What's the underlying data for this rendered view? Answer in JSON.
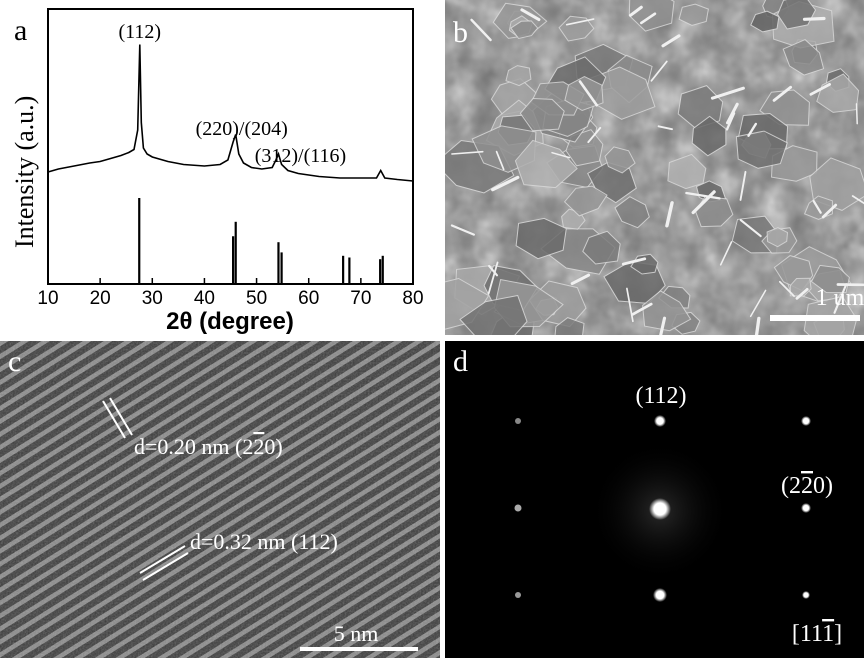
{
  "panels": {
    "a": {
      "label": "a"
    },
    "b": {
      "label": "b",
      "scale_bar": "1 um"
    },
    "c": {
      "label": "c",
      "scale_bar": "5 nm",
      "annotations": [
        {
          "text": "d=0.20 nm (2",
          "overbar_digit": "2",
          "suffix": "0)"
        },
        {
          "text": "d=0.32 nm (112)"
        }
      ]
    },
    "d": {
      "label": "d",
      "spot_labels": [
        {
          "text": "(112)"
        },
        {
          "prefix": "(2",
          "overbar_digit": "2",
          "suffix": "0)"
        }
      ],
      "zone_axis": {
        "prefix": "[11",
        "overbar_digit": "1",
        "suffix": "]"
      }
    }
  },
  "chart_data": {
    "type": "line",
    "xlabel": "2θ (degree)",
    "ylabel": "Intensity (a.u.)",
    "xlim": [
      10,
      80
    ],
    "xticks": [
      10,
      20,
      30,
      40,
      50,
      60,
      70,
      80
    ],
    "series": [
      {
        "values_x": [
          10,
          12,
          15,
          18,
          20,
          22,
          24,
          25.5,
          26.5,
          27.2,
          27.6,
          27.9,
          28.3,
          29,
          30,
          33,
          36,
          40,
          43,
          44.5,
          45.5,
          46.0,
          46.6,
          47.5,
          49,
          51,
          53,
          53.7,
          54.2,
          54.8,
          56,
          58,
          62,
          66,
          70,
          73,
          73.8,
          74.6,
          77,
          80
        ],
        "values_y": [
          0.12,
          0.14,
          0.16,
          0.18,
          0.19,
          0.21,
          0.23,
          0.25,
          0.27,
          0.4,
          0.97,
          0.45,
          0.28,
          0.24,
          0.22,
          0.19,
          0.17,
          0.16,
          0.17,
          0.2,
          0.32,
          0.37,
          0.24,
          0.18,
          0.15,
          0.14,
          0.15,
          0.2,
          0.24,
          0.17,
          0.13,
          0.11,
          0.09,
          0.08,
          0.08,
          0.08,
          0.13,
          0.08,
          0.07,
          0.06
        ]
      }
    ],
    "peak_labels": [
      {
        "text": "(112)",
        "x": 27.6
      },
      {
        "text": "(220)/(204)",
        "x": 46.0
      },
      {
        "text": "(312)/(116)",
        "x": 54.2
      }
    ],
    "reference_lines": {
      "x": [
        27.5,
        45.5,
        46.0,
        54.2,
        54.8,
        66.6,
        67.8,
        73.7,
        74.2
      ],
      "height": [
        1.0,
        0.55,
        0.72,
        0.48,
        0.36,
        0.32,
        0.3,
        0.28,
        0.32
      ]
    }
  }
}
